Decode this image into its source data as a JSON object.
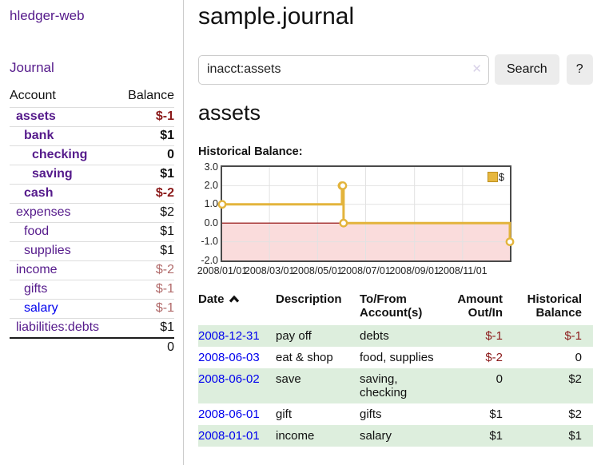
{
  "sidebar": {
    "app_title": "hledger-web",
    "journal_link": "Journal",
    "accounts_table": {
      "headers": {
        "account": "Account",
        "balance": "Balance"
      },
      "rows": [
        {
          "label": "assets",
          "balance": "$-1",
          "depth": 0,
          "bold": true,
          "label_style": "purple",
          "balance_style": "negative"
        },
        {
          "label": "bank",
          "balance": "$1",
          "depth": 1,
          "bold": true,
          "label_style": "purple",
          "balance_style": "normal"
        },
        {
          "label": "checking",
          "balance": "0",
          "depth": 2,
          "bold": true,
          "label_style": "purple",
          "balance_style": "normal"
        },
        {
          "label": "saving",
          "balance": "$1",
          "depth": 2,
          "bold": true,
          "label_style": "purple",
          "balance_style": "normal"
        },
        {
          "label": "cash",
          "balance": "$-2",
          "depth": 1,
          "bold": true,
          "label_style": "purple",
          "balance_style": "negative"
        },
        {
          "label": "expenses",
          "balance": "$2",
          "depth": 0,
          "bold": false,
          "label_style": "purple",
          "balance_style": "normal"
        },
        {
          "label": "food",
          "balance": "$1",
          "depth": 1,
          "bold": false,
          "label_style": "purple",
          "balance_style": "normal"
        },
        {
          "label": "supplies",
          "balance": "$1",
          "depth": 1,
          "bold": false,
          "label_style": "purple",
          "balance_style": "normal"
        },
        {
          "label": "income",
          "balance": "$-2",
          "depth": 0,
          "bold": false,
          "label_style": "purple",
          "balance_style": "negative-muted"
        },
        {
          "label": "gifts",
          "balance": "$-1",
          "depth": 1,
          "bold": false,
          "label_style": "purple",
          "balance_style": "negative-muted"
        },
        {
          "label": "salary",
          "balance": "$-1",
          "depth": 1,
          "bold": false,
          "label_style": "blue",
          "balance_style": "negative-muted"
        },
        {
          "label": "liabilities:debts",
          "balance": "$1",
          "depth": 0,
          "bold": false,
          "label_style": "purple",
          "balance_style": "normal"
        }
      ],
      "total": "0"
    }
  },
  "main": {
    "title": "sample.journal",
    "search": {
      "value": "inacct:assets",
      "clear_icon": "✕",
      "button_label": "Search",
      "help_label": "?"
    },
    "account_heading": "assets",
    "chart_label": "Historical Balance:",
    "register_table": {
      "headers": {
        "date": "Date",
        "description": "Description",
        "accounts": "To/From Account(s)",
        "amount": "Amount Out/In",
        "balance": "Historical Balance"
      },
      "rows": [
        {
          "date": "2008-12-31",
          "description": "pay off",
          "accounts": "debts",
          "amount": "$-1",
          "amount_negative": true,
          "balance": "$-1",
          "balance_negative": true
        },
        {
          "date": "2008-06-03",
          "description": "eat & shop",
          "accounts": "food, supplies",
          "amount": "$-2",
          "amount_negative": true,
          "balance": "0",
          "balance_negative": false
        },
        {
          "date": "2008-06-02",
          "description": "save",
          "accounts": "saving, checking",
          "amount": "0",
          "amount_negative": false,
          "balance": "$2",
          "balance_negative": false
        },
        {
          "date": "2008-06-01",
          "description": "gift",
          "accounts": "gifts",
          "amount": "$1",
          "amount_negative": false,
          "balance": "$2",
          "balance_negative": false
        },
        {
          "date": "2008-01-01",
          "description": "income",
          "accounts": "salary",
          "amount": "$1",
          "amount_negative": false,
          "balance": "$1",
          "balance_negative": false
        }
      ]
    }
  },
  "chart_data": {
    "type": "line",
    "step": true,
    "title": "Historical Balance:",
    "series": [
      {
        "name": "$",
        "points": [
          {
            "date": "2008-01-01",
            "value": 1
          },
          {
            "date": "2008-06-01",
            "value": 2
          },
          {
            "date": "2008-06-02",
            "value": 2
          },
          {
            "date": "2008-06-03",
            "value": 0
          },
          {
            "date": "2008-12-31",
            "value": -1
          }
        ]
      }
    ],
    "x_range": [
      "2008-01-01",
      "2008-12-31"
    ],
    "x_ticks": [
      "2008/01/01",
      "2008/03/01",
      "2008/05/01",
      "2008/07/01",
      "2008/09/01",
      "2008/11/01"
    ],
    "y_ticks": [
      3.0,
      2.0,
      1.0,
      0.0,
      -1.0,
      -2.0
    ],
    "ylim": [
      -2,
      3
    ],
    "legend": {
      "label": "$",
      "position": "top-right"
    },
    "grid": true
  },
  "colors": {
    "link_purple": "#551a8b",
    "link_blue": "#0000ee",
    "negative_strong": "#8b1a1a",
    "negative_muted": "#b16a6a",
    "stripe_green": "#ddeedd",
    "chart_line": "#e3b43c",
    "chart_negative_bg": "#fadcdc",
    "zero_line": "#8b0000",
    "gridline": "#e2e2e2"
  }
}
